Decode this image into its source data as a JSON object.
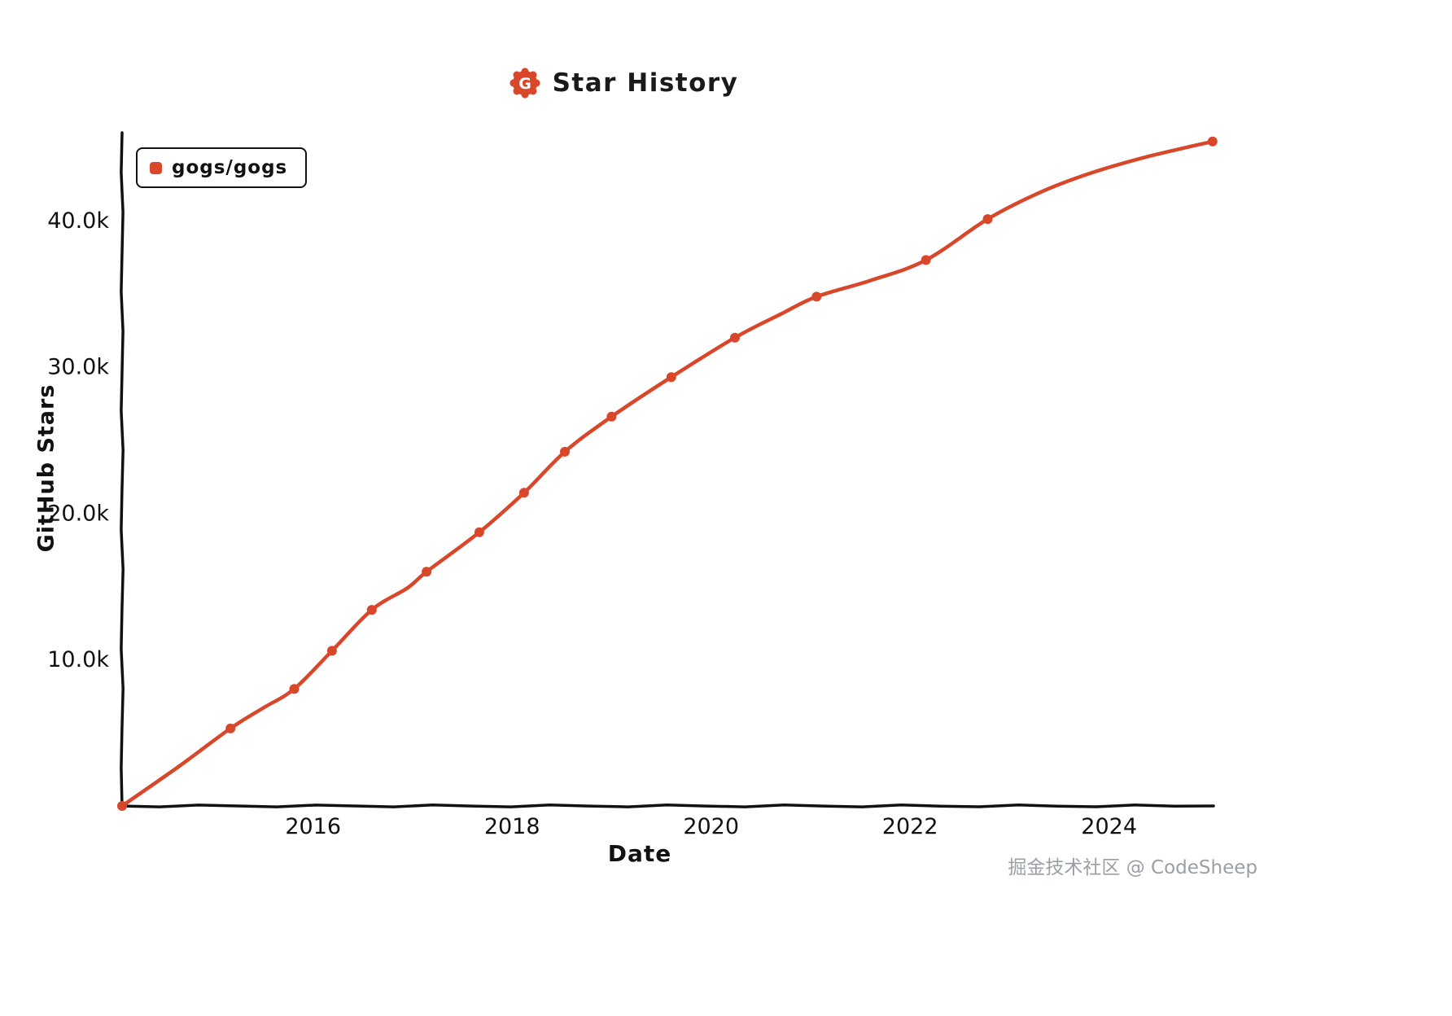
{
  "page": {
    "title": "Star History",
    "watermark": "掘金技术社区 @ CodeSheep",
    "accent_color": "#d9472b",
    "logo_letter": "G"
  },
  "chart_data": {
    "type": "line",
    "title": "Star History",
    "xlabel": "Date",
    "ylabel": "GitHub Stars",
    "legend_position": "top-left",
    "grid": false,
    "axis_color": "#111111",
    "text_color": "#111111",
    "xlim": [
      2014.08,
      2025.05
    ],
    "ylim": [
      0,
      46000
    ],
    "x_ticks": [
      {
        "value": 2016,
        "label": "2016"
      },
      {
        "value": 2018,
        "label": "2018"
      },
      {
        "value": 2020,
        "label": "2020"
      },
      {
        "value": 2022,
        "label": "2022"
      },
      {
        "value": 2024,
        "label": "2024"
      }
    ],
    "y_ticks": [
      {
        "value": 10000,
        "label": "10.0k"
      },
      {
        "value": 20000,
        "label": "20.0k"
      },
      {
        "value": 30000,
        "label": "30.0k"
      },
      {
        "value": 40000,
        "label": "40.0k"
      }
    ],
    "series": [
      {
        "name": "gogs/gogs",
        "color": "#d9472b",
        "points": [
          {
            "x": 2014.08,
            "y": 0,
            "dot": true
          },
          {
            "x": 2014.65,
            "y": 2700,
            "dot": false
          },
          {
            "x": 2015.17,
            "y": 5300,
            "dot": true
          },
          {
            "x": 2015.5,
            "y": 6700,
            "dot": false
          },
          {
            "x": 2015.81,
            "y": 8000,
            "dot": true
          },
          {
            "x": 2016.19,
            "y": 10600,
            "dot": true
          },
          {
            "x": 2016.59,
            "y": 13400,
            "dot": true
          },
          {
            "x": 2016.95,
            "y": 14900,
            "dot": false
          },
          {
            "x": 2017.14,
            "y": 16000,
            "dot": true
          },
          {
            "x": 2017.67,
            "y": 18700,
            "dot": true
          },
          {
            "x": 2018.12,
            "y": 21400,
            "dot": true
          },
          {
            "x": 2018.53,
            "y": 24200,
            "dot": true
          },
          {
            "x": 2019.0,
            "y": 26600,
            "dot": true
          },
          {
            "x": 2019.6,
            "y": 29300,
            "dot": true
          },
          {
            "x": 2020.24,
            "y": 32000,
            "dot": true
          },
          {
            "x": 2020.7,
            "y": 33600,
            "dot": false
          },
          {
            "x": 2021.06,
            "y": 34800,
            "dot": true
          },
          {
            "x": 2021.6,
            "y": 35900,
            "dot": false
          },
          {
            "x": 2022.16,
            "y": 37300,
            "dot": true
          },
          {
            "x": 2022.78,
            "y": 40100,
            "dot": true
          },
          {
            "x": 2023.3,
            "y": 41900,
            "dot": false
          },
          {
            "x": 2023.8,
            "y": 43200,
            "dot": false
          },
          {
            "x": 2024.35,
            "y": 44300,
            "dot": false
          },
          {
            "x": 2025.04,
            "y": 45400,
            "dot": true
          }
        ]
      }
    ]
  }
}
